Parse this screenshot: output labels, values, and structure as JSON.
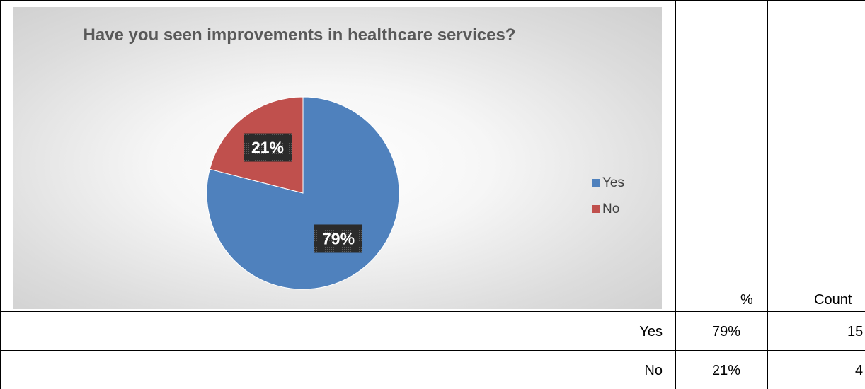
{
  "chart_data": {
    "type": "pie",
    "title": "Have you seen improvements in healthcare services?",
    "categories": [
      "Yes",
      "No"
    ],
    "values": [
      79,
      21
    ],
    "labels": [
      "79%",
      "21%"
    ],
    "colors": [
      "#4F81BD",
      "#C0504D"
    ],
    "legend": [
      "Yes",
      "No"
    ],
    "legend_position": "right"
  },
  "table": {
    "headers": [
      "",
      "%",
      "Count"
    ],
    "rows": [
      {
        "label": "Yes",
        "percent": "79%",
        "count": "15"
      },
      {
        "label": "No",
        "percent": "21%",
        "count": "4"
      }
    ]
  }
}
